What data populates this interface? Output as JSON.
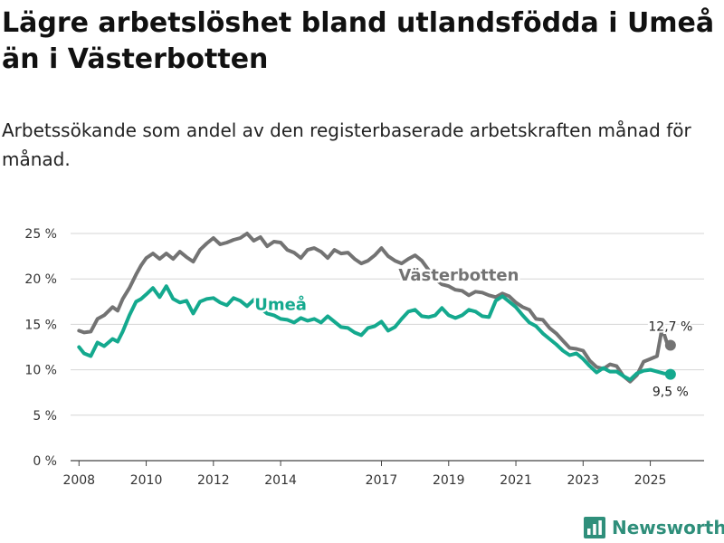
{
  "title": "Lägre arbetslöshet bland utlandsfödda i Umeå än i Västerbotten",
  "subtitle": "Arbetssökande som andel av den registerbaserade arbetskraften månad för månad.",
  "brand": {
    "name": "Newsworthy",
    "icon": "bar-chart-logo-icon"
  },
  "colors": {
    "vasterbotten": "#737373",
    "umea": "#14a98e",
    "grid": "#d6d6d6",
    "brand": "#2f8f7b"
  },
  "chart_data": {
    "type": "line",
    "title": "Lägre arbetslöshet bland utlandsfödda i Umeå än i Västerbotten",
    "xlabel": "",
    "ylabel": "",
    "ylim": [
      0,
      25
    ],
    "xlim": [
      2007.75,
      2026.6
    ],
    "y_ticks": [
      0,
      5,
      10,
      15,
      20,
      25
    ],
    "y_tick_labels": [
      "0 %",
      "5 %",
      "10 %",
      "15 %",
      "20 %",
      "25 %"
    ],
    "x_ticks": [
      2008,
      2010,
      2012,
      2014,
      2017,
      2019,
      2021,
      2023,
      2025
    ],
    "x_tick_labels": [
      "2008",
      "2010",
      "2012",
      "2014",
      "2017",
      "2019",
      "2021",
      "2023",
      "2025"
    ],
    "grid": true,
    "series": [
      {
        "name": "Västerbotten",
        "color": "#737373",
        "label_position": {
          "x": 2019.3,
          "y": 19.8
        },
        "end_label": "12,7 %",
        "points": [
          [
            2008.0,
            14.3
          ],
          [
            2008.15,
            14.1
          ],
          [
            2008.35,
            14.2
          ],
          [
            2008.55,
            15.6
          ],
          [
            2008.75,
            16.0
          ],
          [
            2009.0,
            16.9
          ],
          [
            2009.15,
            16.5
          ],
          [
            2009.3,
            17.8
          ],
          [
            2009.5,
            19.0
          ],
          [
            2009.7,
            20.5
          ],
          [
            2009.85,
            21.5
          ],
          [
            2010.0,
            22.3
          ],
          [
            2010.2,
            22.8
          ],
          [
            2010.4,
            22.2
          ],
          [
            2010.6,
            22.8
          ],
          [
            2010.8,
            22.2
          ],
          [
            2011.0,
            23.0
          ],
          [
            2011.2,
            22.4
          ],
          [
            2011.4,
            21.9
          ],
          [
            2011.6,
            23.2
          ],
          [
            2011.8,
            23.9
          ],
          [
            2012.0,
            24.5
          ],
          [
            2012.2,
            23.8
          ],
          [
            2012.4,
            24.0
          ],
          [
            2012.6,
            24.3
          ],
          [
            2012.8,
            24.5
          ],
          [
            2013.0,
            25.0
          ],
          [
            2013.2,
            24.2
          ],
          [
            2013.4,
            24.6
          ],
          [
            2013.6,
            23.6
          ],
          [
            2013.8,
            24.1
          ],
          [
            2014.0,
            24.0
          ],
          [
            2014.2,
            23.2
          ],
          [
            2014.4,
            22.9
          ],
          [
            2014.6,
            22.3
          ],
          [
            2014.8,
            23.2
          ],
          [
            2015.0,
            23.4
          ],
          [
            2015.2,
            23.0
          ],
          [
            2015.4,
            22.3
          ],
          [
            2015.6,
            23.2
          ],
          [
            2015.8,
            22.8
          ],
          [
            2016.0,
            22.9
          ],
          [
            2016.2,
            22.2
          ],
          [
            2016.4,
            21.7
          ],
          [
            2016.6,
            22.0
          ],
          [
            2016.8,
            22.6
          ],
          [
            2017.0,
            23.4
          ],
          [
            2017.2,
            22.5
          ],
          [
            2017.4,
            22.0
          ],
          [
            2017.6,
            21.7
          ],
          [
            2017.8,
            22.2
          ],
          [
            2018.0,
            22.6
          ],
          [
            2018.2,
            22.0
          ],
          [
            2018.4,
            21.0
          ],
          [
            2018.6,
            20.0
          ],
          [
            2018.8,
            19.4
          ],
          [
            2019.0,
            19.2
          ],
          [
            2019.2,
            18.8
          ],
          [
            2019.4,
            18.7
          ],
          [
            2019.6,
            18.2
          ],
          [
            2019.8,
            18.6
          ],
          [
            2020.0,
            18.5
          ],
          [
            2020.2,
            18.2
          ],
          [
            2020.4,
            18.0
          ],
          [
            2020.6,
            18.4
          ],
          [
            2020.8,
            18.1
          ],
          [
            2021.0,
            17.4
          ],
          [
            2021.2,
            16.9
          ],
          [
            2021.4,
            16.6
          ],
          [
            2021.6,
            15.6
          ],
          [
            2021.8,
            15.5
          ],
          [
            2022.0,
            14.6
          ],
          [
            2022.2,
            14.0
          ],
          [
            2022.4,
            13.2
          ],
          [
            2022.6,
            12.4
          ],
          [
            2022.8,
            12.3
          ],
          [
            2023.0,
            12.1
          ],
          [
            2023.2,
            11.0
          ],
          [
            2023.4,
            10.3
          ],
          [
            2023.6,
            10.1
          ],
          [
            2023.8,
            10.6
          ],
          [
            2024.0,
            10.4
          ],
          [
            2024.2,
            9.3
          ],
          [
            2024.4,
            8.7
          ],
          [
            2024.6,
            9.4
          ],
          [
            2024.8,
            10.9
          ],
          [
            2025.0,
            11.2
          ],
          [
            2025.2,
            11.5
          ],
          [
            2025.35,
            14.6
          ],
          [
            2025.5,
            12.9
          ],
          [
            2025.6,
            12.7
          ]
        ]
      },
      {
        "name": "Umeå",
        "color": "#14a98e",
        "label_position": {
          "x": 2014.0,
          "y": 16.6
        },
        "end_label": "9,5 %",
        "points": [
          [
            2008.0,
            12.5
          ],
          [
            2008.15,
            11.8
          ],
          [
            2008.35,
            11.5
          ],
          [
            2008.55,
            13.0
          ],
          [
            2008.75,
            12.6
          ],
          [
            2009.0,
            13.4
          ],
          [
            2009.15,
            13.1
          ],
          [
            2009.3,
            14.2
          ],
          [
            2009.5,
            16.0
          ],
          [
            2009.7,
            17.5
          ],
          [
            2009.85,
            17.8
          ],
          [
            2010.0,
            18.3
          ],
          [
            2010.2,
            19.0
          ],
          [
            2010.4,
            18.0
          ],
          [
            2010.6,
            19.2
          ],
          [
            2010.8,
            17.8
          ],
          [
            2011.0,
            17.4
          ],
          [
            2011.2,
            17.6
          ],
          [
            2011.4,
            16.2
          ],
          [
            2011.6,
            17.5
          ],
          [
            2011.8,
            17.8
          ],
          [
            2012.0,
            17.9
          ],
          [
            2012.2,
            17.4
          ],
          [
            2012.4,
            17.1
          ],
          [
            2012.6,
            17.9
          ],
          [
            2012.8,
            17.6
          ],
          [
            2013.0,
            17.0
          ],
          [
            2013.2,
            17.7
          ],
          [
            2013.4,
            16.8
          ],
          [
            2013.6,
            16.2
          ],
          [
            2013.8,
            16.0
          ],
          [
            2014.0,
            15.6
          ],
          [
            2014.2,
            15.5
          ],
          [
            2014.4,
            15.2
          ],
          [
            2014.6,
            15.7
          ],
          [
            2014.8,
            15.4
          ],
          [
            2015.0,
            15.6
          ],
          [
            2015.2,
            15.2
          ],
          [
            2015.4,
            15.9
          ],
          [
            2015.6,
            15.3
          ],
          [
            2015.8,
            14.7
          ],
          [
            2016.0,
            14.6
          ],
          [
            2016.2,
            14.1
          ],
          [
            2016.4,
            13.8
          ],
          [
            2016.6,
            14.6
          ],
          [
            2016.8,
            14.8
          ],
          [
            2017.0,
            15.3
          ],
          [
            2017.2,
            14.3
          ],
          [
            2017.4,
            14.7
          ],
          [
            2017.6,
            15.6
          ],
          [
            2017.8,
            16.4
          ],
          [
            2018.0,
            16.6
          ],
          [
            2018.2,
            15.9
          ],
          [
            2018.4,
            15.8
          ],
          [
            2018.6,
            16.0
          ],
          [
            2018.8,
            16.8
          ],
          [
            2019.0,
            16.0
          ],
          [
            2019.2,
            15.7
          ],
          [
            2019.4,
            16.0
          ],
          [
            2019.6,
            16.6
          ],
          [
            2019.8,
            16.4
          ],
          [
            2020.0,
            15.9
          ],
          [
            2020.2,
            15.8
          ],
          [
            2020.4,
            17.6
          ],
          [
            2020.6,
            18.1
          ],
          [
            2020.8,
            17.5
          ],
          [
            2021.0,
            16.9
          ],
          [
            2021.2,
            16.0
          ],
          [
            2021.4,
            15.2
          ],
          [
            2021.6,
            14.8
          ],
          [
            2021.8,
            14.0
          ],
          [
            2022.0,
            13.4
          ],
          [
            2022.2,
            12.8
          ],
          [
            2022.4,
            12.1
          ],
          [
            2022.6,
            11.6
          ],
          [
            2022.8,
            11.8
          ],
          [
            2023.0,
            11.2
          ],
          [
            2023.2,
            10.4
          ],
          [
            2023.4,
            9.7
          ],
          [
            2023.6,
            10.2
          ],
          [
            2023.8,
            9.8
          ],
          [
            2024.0,
            9.8
          ],
          [
            2024.2,
            9.3
          ],
          [
            2024.4,
            8.9
          ],
          [
            2024.6,
            9.6
          ],
          [
            2024.8,
            9.9
          ],
          [
            2025.0,
            10.0
          ],
          [
            2025.2,
            9.8
          ],
          [
            2025.4,
            9.6
          ],
          [
            2025.6,
            9.5
          ]
        ]
      }
    ]
  }
}
